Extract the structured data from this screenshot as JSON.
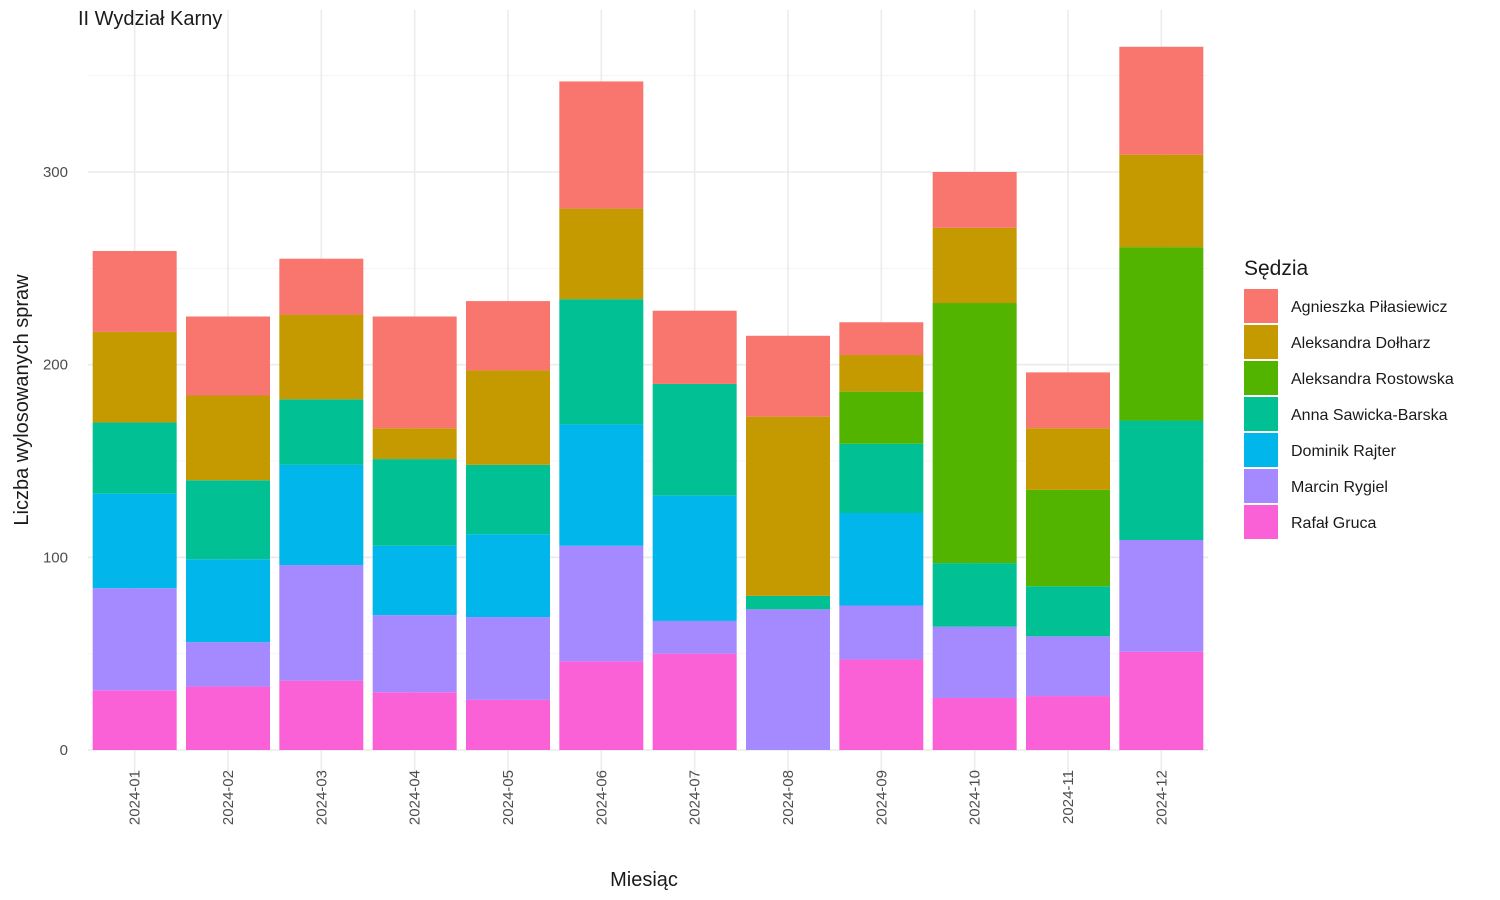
{
  "chart_data": {
    "type": "bar",
    "stacked": true,
    "title": "II Wydział Karny",
    "xlabel": "Miesiąc",
    "ylabel": "Liczba wylosowanych spraw",
    "ylim": [
      0,
      370
    ],
    "yticks": [
      0,
      100,
      200,
      300
    ],
    "grid": true,
    "legend_title": "Sędzia",
    "legend_position": "right",
    "categories": [
      "2024-01",
      "2024-02",
      "2024-03",
      "2024-04",
      "2024-05",
      "2024-06",
      "2024-07",
      "2024-08",
      "2024-09",
      "2024-10",
      "2024-11",
      "2024-12"
    ],
    "series": [
      {
        "name": "Agnieszka Piłasiewicz",
        "color": "#F8766D",
        "values": [
          42,
          41,
          29,
          58,
          36,
          66,
          38,
          42,
          17,
          29,
          29,
          56
        ]
      },
      {
        "name": "Aleksandra Dołharz",
        "color": "#C49A00",
        "values": [
          47,
          44,
          44,
          16,
          49,
          47,
          0,
          93,
          19,
          39,
          32,
          48
        ]
      },
      {
        "name": "Aleksandra Rostowska",
        "color": "#53B400",
        "values": [
          0,
          0,
          0,
          0,
          0,
          0,
          0,
          0,
          27,
          135,
          50,
          90
        ]
      },
      {
        "name": "Anna Sawicka-Barska",
        "color": "#00C094",
        "values": [
          37,
          41,
          34,
          45,
          36,
          65,
          58,
          7,
          36,
          33,
          26,
          62
        ]
      },
      {
        "name": "Dominik Rajter",
        "color": "#00B6EB",
        "values": [
          49,
          43,
          52,
          36,
          43,
          63,
          65,
          0,
          48,
          0,
          0,
          0
        ]
      },
      {
        "name": "Marcin Rygiel",
        "color": "#A58AFF",
        "values": [
          53,
          23,
          60,
          40,
          43,
          60,
          17,
          73,
          28,
          37,
          31,
          58
        ]
      },
      {
        "name": "Rafał Gruca",
        "color": "#FB61D7",
        "values": [
          31,
          33,
          36,
          30,
          26,
          46,
          50,
          0,
          47,
          27,
          28,
          51
        ]
      }
    ]
  }
}
